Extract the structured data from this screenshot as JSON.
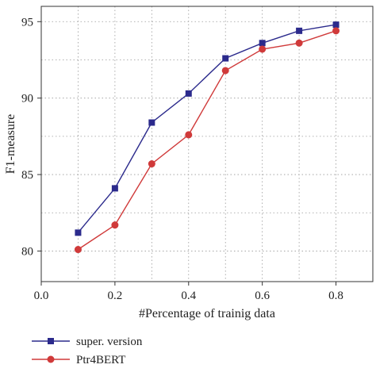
{
  "chart_data": {
    "type": "line",
    "title": "",
    "xlabel": "#Percentage of trainig data",
    "ylabel": "F1-measure",
    "xlim": [
      0.0,
      0.9
    ],
    "ylim": [
      78.0,
      96.0
    ],
    "xticks": [
      0.0,
      0.2,
      0.4,
      0.6,
      0.8
    ],
    "xtick_labels": [
      "0.0",
      "0.2",
      "0.4",
      "0.6",
      "0.8"
    ],
    "yticks": [
      80,
      85,
      90,
      95
    ],
    "ytick_labels": [
      "80",
      "85",
      "90",
      "95"
    ],
    "grid": "dotted",
    "legend_position": "bottom-left, below plot",
    "x": [
      0.1,
      0.2,
      0.3,
      0.4,
      0.5,
      0.6,
      0.7,
      0.8
    ],
    "series": [
      {
        "name": "super. version",
        "color": "#2b2a8c",
        "marker": "square",
        "values": [
          81.2,
          84.1,
          88.4,
          90.3,
          92.6,
          93.6,
          94.4,
          94.8
        ]
      },
      {
        "name": "Ptr4BERT",
        "color": "#d03a3a",
        "marker": "circle",
        "values": [
          80.1,
          81.7,
          85.7,
          87.6,
          91.8,
          93.2,
          93.6,
          94.4
        ]
      }
    ]
  }
}
